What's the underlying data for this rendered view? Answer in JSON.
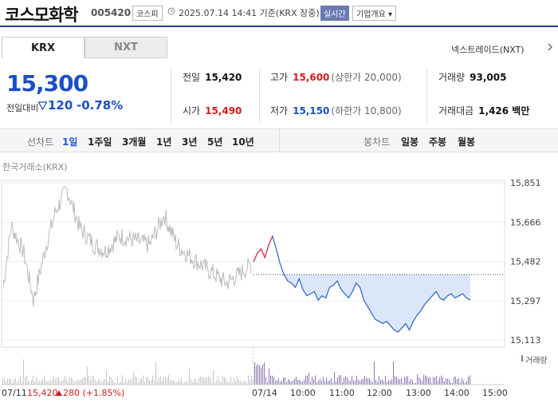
{
  "header": {
    "name": "코스모화학",
    "code": "005420",
    "market": "코스피",
    "time": "2025.07.14 14:41 기준(KRX 장중)",
    "realtime": "실시간",
    "overview": "기업개요 ▾"
  },
  "tabs": {
    "krx": "KRX",
    "nxt": "NXT"
  },
  "nxt_link": "넥스트레이드(NXT)",
  "price": {
    "current": "15,300",
    "prev_label": "전일대비",
    "change": "120",
    "change_pct": "-0.78%"
  },
  "stats": {
    "prev_close": {
      "label": "전일",
      "value": "15,420"
    },
    "high": {
      "label": "고가",
      "value": "15,600",
      "sub": "(상한가 20,000)"
    },
    "volume": {
      "label": "거래량",
      "value": "93,005"
    },
    "open": {
      "label": "시가",
      "value": "15,490"
    },
    "low": {
      "label": "저가",
      "value": "15,150",
      "sub": "(하한가 10,800)"
    },
    "amount": {
      "label": "거래대금",
      "value": "1,426 백만"
    }
  },
  "period_bar": {
    "line_label": "선차트",
    "line_items": [
      "1일",
      "1주일",
      "3개월",
      "1년",
      "3년",
      "5년",
      "10년"
    ],
    "candle_label": "봉차트",
    "candle_items": [
      "일봉",
      "주봉",
      "월봉"
    ]
  },
  "chart_data": {
    "type": "line",
    "source": "한국거래소(KRX)",
    "y_ticks": [
      "15,851",
      "15,666",
      "15,482",
      "15,297",
      "15,113"
    ],
    "ylim": [
      15113,
      15851
    ],
    "prev_close_line": 15420,
    "x_ticks": [
      "10:00",
      "11:00",
      "12:00",
      "13:00",
      "14:00",
      "15:00"
    ],
    "volume_label": "거래량",
    "prev_day": {
      "date": "07/11",
      "close": "15,420",
      "change": "280 (+1.85%)"
    },
    "today_date": "07/14",
    "series": [
      {
        "values": [
          15480,
          15520,
          15540,
          15500,
          15560,
          15600,
          15540,
          15470,
          15420,
          15390,
          15380,
          15360,
          15400,
          15350,
          15320,
          15330,
          15340,
          15300,
          15320,
          15310,
          15360,
          15370,
          15390,
          15350,
          15330,
          15310,
          15340,
          15380,
          15360,
          15300,
          15270,
          15240,
          15210,
          15200,
          15190,
          15200,
          15180,
          15160,
          15150,
          15170,
          15190,
          15160,
          15200,
          15230,
          15250,
          15280,
          15300,
          15320,
          15340,
          15310,
          15300,
          15320,
          15330,
          15310,
          15320,
          15330,
          15310,
          15300
        ]
      }
    ]
  }
}
